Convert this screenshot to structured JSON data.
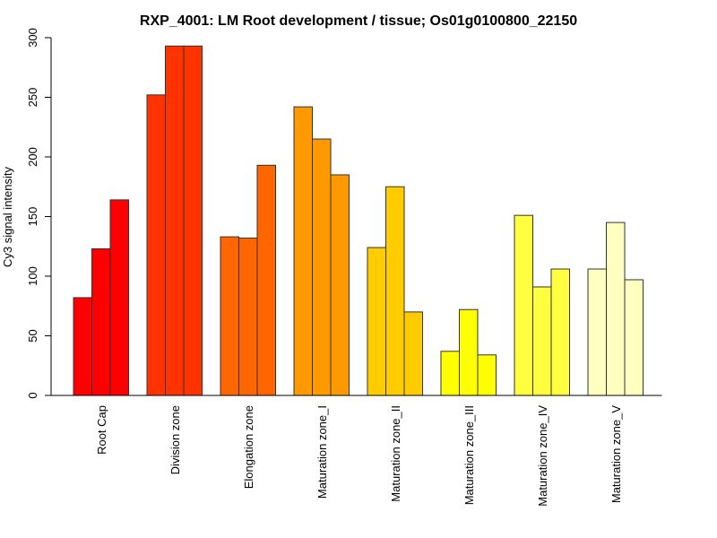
{
  "chart_data": {
    "type": "bar",
    "title": "RXP_4001: LM Root development / tissue; Os01g0100800_22150",
    "xlabel": "",
    "ylabel": "Cy3 signal intensity",
    "ylim": [
      0,
      300
    ],
    "yticks": [
      0,
      50,
      100,
      150,
      200,
      250,
      300
    ],
    "grid": false,
    "legend": "none",
    "categories": [
      "Root Cap",
      "Division zone",
      "Elongation zone",
      "Maturation zone_I",
      "Maturation zone_II",
      "Maturation zone_III",
      "Maturation zone_IV",
      "Maturation zone_V"
    ],
    "colors": [
      "#FF0000",
      "#FF3300",
      "#FF6600",
      "#FF9900",
      "#FFCC00",
      "#FFFF00",
      "#FFFF40",
      "#FFFFBF"
    ],
    "replicates_per_category": 3,
    "values": [
      [
        82,
        123,
        164
      ],
      [
        252,
        293,
        293
      ],
      [
        133,
        132,
        193
      ],
      [
        242,
        215,
        185
      ],
      [
        124,
        175,
        70
      ],
      [
        37,
        72,
        34
      ],
      [
        151,
        91,
        106
      ],
      [
        106,
        145,
        97
      ]
    ]
  }
}
